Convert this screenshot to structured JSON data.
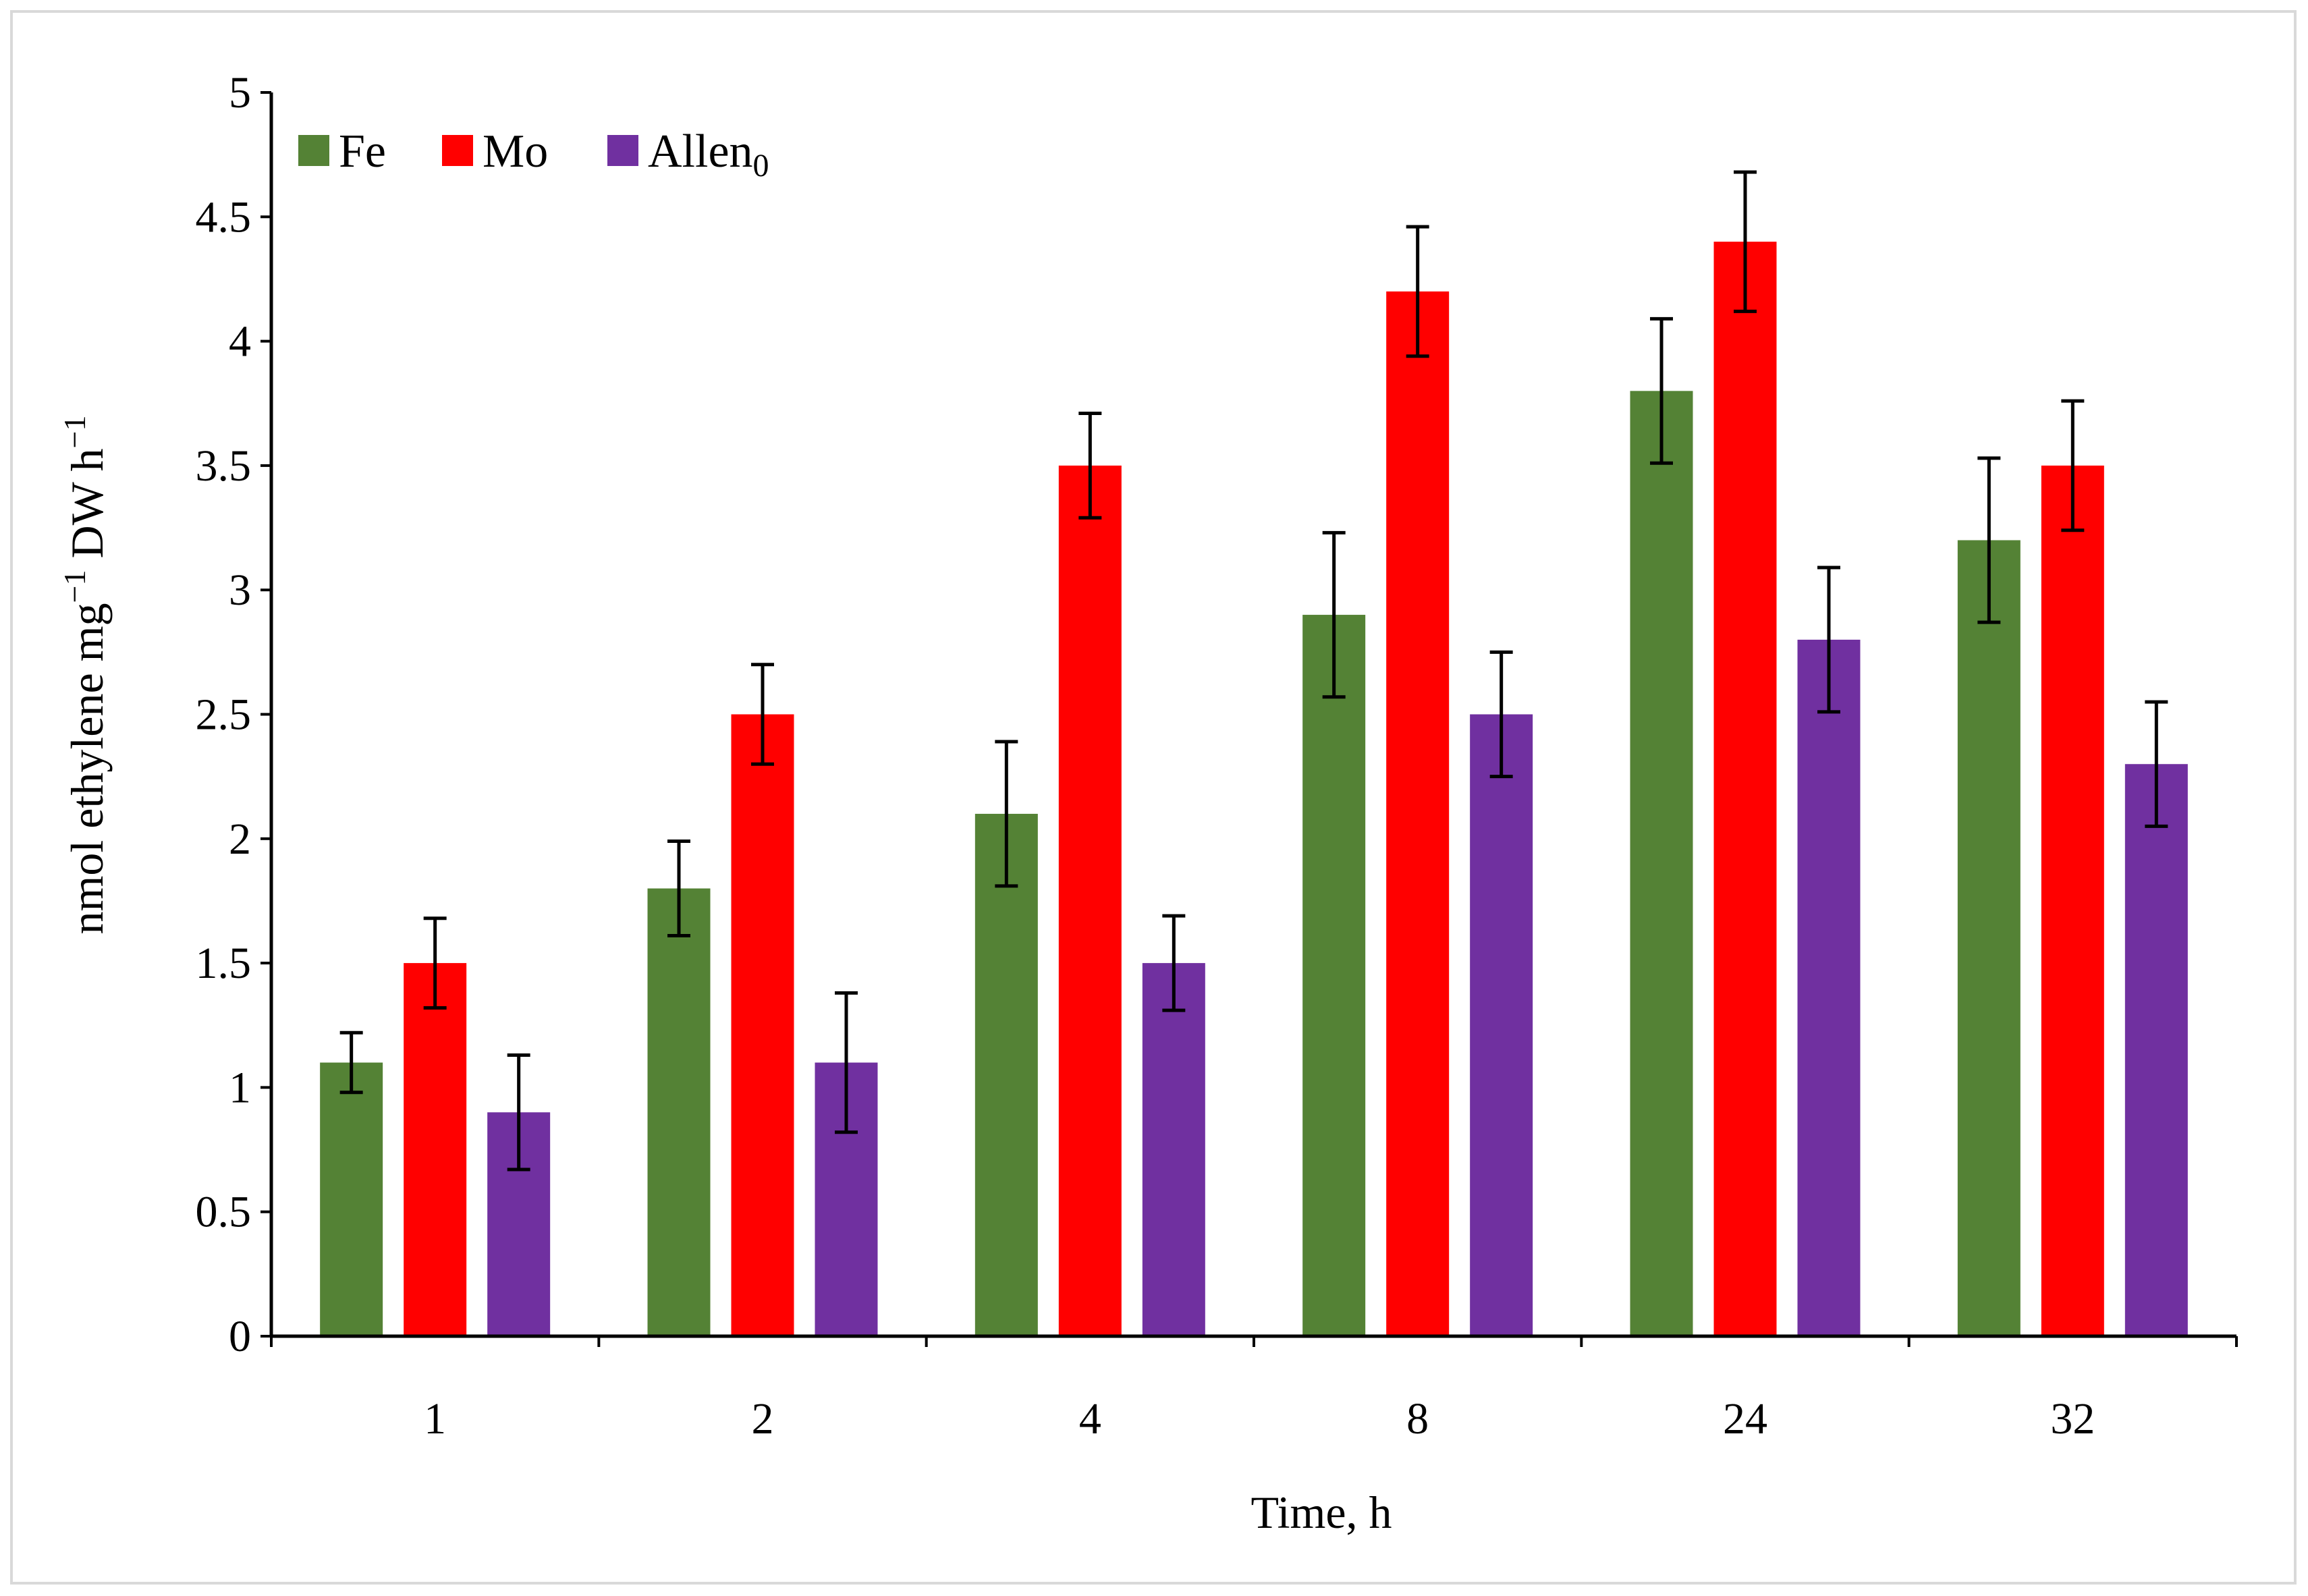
{
  "chart_data": {
    "type": "bar",
    "title": "",
    "xlabel": "Time, h",
    "ylabel": {
      "base": "nmol ethylene mg",
      "sup1": "−1",
      "mid": " DW h",
      "sup2": "−1"
    },
    "categories": [
      "1",
      "2",
      "4",
      "8",
      "24",
      "32"
    ],
    "ylim": [
      0,
      5
    ],
    "yticks": [
      0,
      0.5,
      1,
      1.5,
      2,
      2.5,
      3,
      3.5,
      4,
      4.5,
      5
    ],
    "ytick_labels": [
      "0",
      "0.5",
      "1",
      "1.5",
      "2",
      "2.5",
      "3",
      "3.5",
      "4",
      "4.5",
      "5"
    ],
    "grid": false,
    "legend_position": "top-left",
    "series": [
      {
        "name": "Fe",
        "name_sub": "",
        "color": "#548235",
        "values": [
          1.1,
          1.8,
          2.1,
          2.9,
          3.8,
          3.2
        ],
        "errors": [
          0.12,
          0.19,
          0.29,
          0.33,
          0.29,
          0.33
        ]
      },
      {
        "name": "Mo",
        "name_sub": "",
        "color": "#ff0000",
        "values": [
          1.5,
          2.5,
          3.5,
          4.2,
          4.4,
          3.5
        ],
        "errors": [
          0.18,
          0.2,
          0.21,
          0.26,
          0.28,
          0.26
        ]
      },
      {
        "name": "Allen",
        "name_sub": "0",
        "color": "#7030a0",
        "values": [
          0.9,
          1.1,
          1.5,
          2.5,
          2.8,
          2.3
        ],
        "errors": [
          0.23,
          0.28,
          0.19,
          0.25,
          0.29,
          0.25
        ]
      }
    ]
  }
}
